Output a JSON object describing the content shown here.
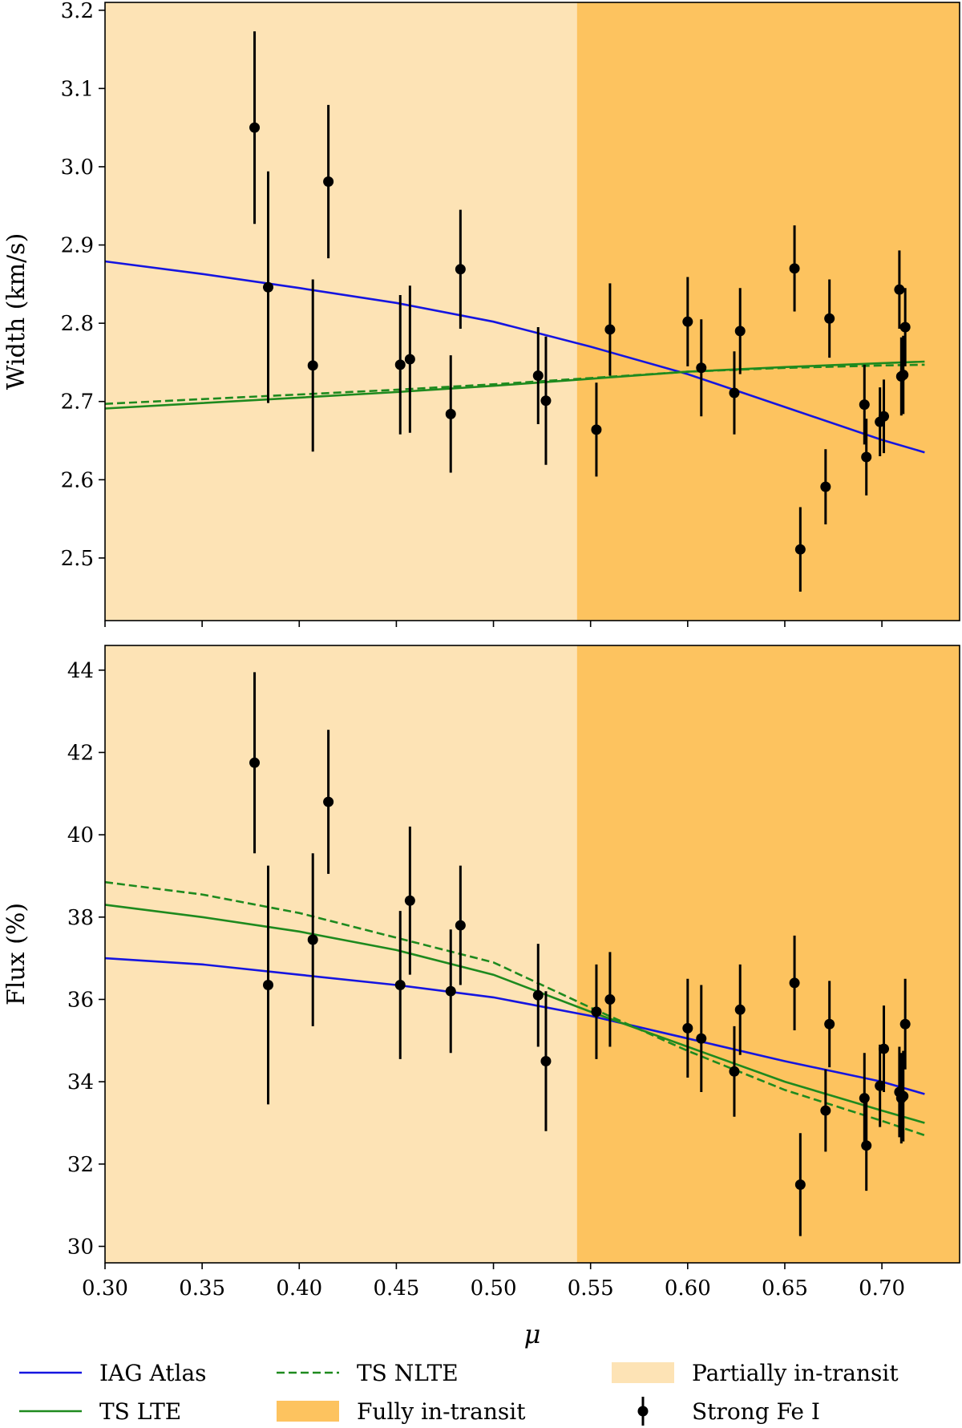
{
  "chart_data": [
    {
      "type": "scatter",
      "ylabel": "Width (km/s)",
      "xlim": [
        0.3,
        0.74
      ],
      "ylim": [
        2.42,
        3.21
      ],
      "yticks": [
        "2.5",
        "2.6",
        "2.7",
        "2.8",
        "2.9",
        "3.0",
        "3.1",
        "3.2"
      ],
      "spans": [
        {
          "name": "Partially in-transit",
          "from": 0.3,
          "to": 0.543,
          "color": "#fde3b5"
        },
        {
          "name": "Fully in-transit",
          "from": 0.543,
          "to": 0.74,
          "color": "#fdc35f"
        }
      ],
      "series": [
        {
          "name": "IAG Atlas",
          "style": "solid",
          "color": "#1515e0",
          "x": [
            0.3,
            0.35,
            0.4,
            0.45,
            0.5,
            0.55,
            0.6,
            0.65,
            0.7,
            0.722
          ],
          "y": [
            2.879,
            2.863,
            2.845,
            2.826,
            2.802,
            2.77,
            2.735,
            2.693,
            2.651,
            2.635
          ]
        },
        {
          "name": "TS LTE",
          "style": "solid",
          "color": "#1e8a1e",
          "x": [
            0.3,
            0.35,
            0.4,
            0.45,
            0.5,
            0.55,
            0.6,
            0.65,
            0.7,
            0.722
          ],
          "y": [
            2.691,
            2.698,
            2.705,
            2.712,
            2.72,
            2.729,
            2.738,
            2.744,
            2.749,
            2.751
          ]
        },
        {
          "name": "TS NLTE",
          "style": "dashed",
          "color": "#1e8a1e",
          "x": [
            0.3,
            0.35,
            0.4,
            0.45,
            0.5,
            0.55,
            0.6,
            0.65,
            0.7,
            0.722
          ],
          "y": [
            2.697,
            2.703,
            2.709,
            2.715,
            2.722,
            2.73,
            2.738,
            2.743,
            2.746,
            2.747
          ]
        },
        {
          "name": "Strong Fe I",
          "style": "errorbar",
          "color": "#000000",
          "x": [
            0.377,
            0.384,
            0.407,
            0.415,
            0.452,
            0.457,
            0.478,
            0.483,
            0.523,
            0.527,
            0.553,
            0.56,
            0.6,
            0.607,
            0.624,
            0.627,
            0.655,
            0.658,
            0.671,
            0.673,
            0.691,
            0.692,
            0.699,
            0.701,
            0.709,
            0.71,
            0.711,
            0.712
          ],
          "y": [
            3.05,
            2.846,
            2.746,
            2.981,
            2.747,
            2.754,
            2.684,
            2.869,
            2.733,
            2.701,
            2.664,
            2.792,
            2.802,
            2.743,
            2.711,
            2.79,
            2.87,
            2.511,
            2.591,
            2.806,
            2.696,
            2.629,
            2.674,
            2.681,
            2.843,
            2.732,
            2.734,
            2.795
          ],
          "err": [
            0.123,
            0.148,
            0.11,
            0.098,
            0.089,
            0.094,
            0.075,
            0.076,
            0.062,
            0.082,
            0.06,
            0.059,
            0.057,
            0.062,
            0.053,
            0.055,
            0.055,
            0.054,
            0.048,
            0.05,
            0.051,
            0.049,
            0.044,
            0.047,
            0.05,
            0.05,
            0.05,
            0.05
          ]
        }
      ]
    },
    {
      "type": "scatter",
      "ylabel": "Flux (%)",
      "xlabel": "μ",
      "xlim": [
        0.3,
        0.74
      ],
      "ylim": [
        29.6,
        44.6
      ],
      "yticks": [
        "30",
        "32",
        "34",
        "36",
        "38",
        "40",
        "42",
        "44"
      ],
      "xticks": [
        "0.30",
        "0.35",
        "0.40",
        "0.45",
        "0.50",
        "0.55",
        "0.60",
        "0.65",
        "0.70"
      ],
      "spans": [
        {
          "name": "Partially in-transit",
          "from": 0.3,
          "to": 0.543,
          "color": "#fde3b5"
        },
        {
          "name": "Fully in-transit",
          "from": 0.543,
          "to": 0.74,
          "color": "#fdc35f"
        }
      ],
      "series": [
        {
          "name": "IAG Atlas",
          "style": "solid",
          "color": "#1515e0",
          "x": [
            0.3,
            0.35,
            0.4,
            0.45,
            0.5,
            0.55,
            0.6,
            0.65,
            0.7,
            0.722
          ],
          "y": [
            37.0,
            36.85,
            36.6,
            36.35,
            36.05,
            35.6,
            35.05,
            34.5,
            34.0,
            33.7
          ]
        },
        {
          "name": "TS LTE",
          "style": "solid",
          "color": "#1e8a1e",
          "x": [
            0.3,
            0.35,
            0.4,
            0.45,
            0.5,
            0.55,
            0.6,
            0.65,
            0.7,
            0.722
          ],
          "y": [
            38.3,
            38.0,
            37.65,
            37.2,
            36.6,
            35.7,
            34.85,
            34.0,
            33.3,
            33.0
          ]
        },
        {
          "name": "TS NLTE",
          "style": "dashed",
          "color": "#1e8a1e",
          "x": [
            0.3,
            0.35,
            0.4,
            0.45,
            0.5,
            0.55,
            0.6,
            0.65,
            0.7,
            0.722
          ],
          "y": [
            38.85,
            38.55,
            38.1,
            37.5,
            36.9,
            35.8,
            34.75,
            33.8,
            33.05,
            32.7
          ]
        },
        {
          "name": "Strong Fe I",
          "style": "errorbar",
          "color": "#000000",
          "x": [
            0.377,
            0.384,
            0.407,
            0.415,
            0.452,
            0.457,
            0.478,
            0.483,
            0.523,
            0.527,
            0.553,
            0.56,
            0.6,
            0.607,
            0.624,
            0.627,
            0.655,
            0.658,
            0.671,
            0.673,
            0.691,
            0.692,
            0.699,
            0.701,
            0.709,
            0.71,
            0.711,
            0.712
          ],
          "y": [
            41.75,
            36.35,
            37.45,
            40.8,
            36.35,
            38.4,
            36.2,
            37.8,
            36.1,
            34.5,
            35.7,
            36.0,
            35.3,
            35.05,
            34.25,
            35.75,
            36.4,
            31.5,
            33.3,
            35.4,
            33.6,
            32.45,
            33.9,
            34.8,
            33.75,
            33.6,
            33.65,
            35.4
          ],
          "err": [
            2.2,
            2.9,
            2.1,
            1.75,
            1.8,
            1.8,
            1.5,
            1.45,
            1.25,
            1.7,
            1.15,
            1.15,
            1.2,
            1.3,
            1.1,
            1.1,
            1.15,
            1.25,
            1.0,
            1.05,
            1.1,
            1.1,
            1.0,
            1.05,
            1.1,
            1.1,
            1.1,
            1.1
          ]
        }
      ]
    }
  ],
  "legend": {
    "items": [
      {
        "label": "IAG Atlas",
        "kind": "line",
        "color": "#1515e0",
        "dash": false
      },
      {
        "label": "TS NLTE",
        "kind": "line",
        "color": "#1e8a1e",
        "dash": true
      },
      {
        "label": "Partially in-transit",
        "kind": "patch",
        "color": "#fde3b5"
      },
      {
        "label": "TS LTE",
        "kind": "line",
        "color": "#1e8a1e",
        "dash": false
      },
      {
        "label": "Fully in-transit",
        "kind": "patch",
        "color": "#fdc35f"
      },
      {
        "label": "Strong Fe I",
        "kind": "errorbar",
        "color": "#000000"
      }
    ]
  }
}
